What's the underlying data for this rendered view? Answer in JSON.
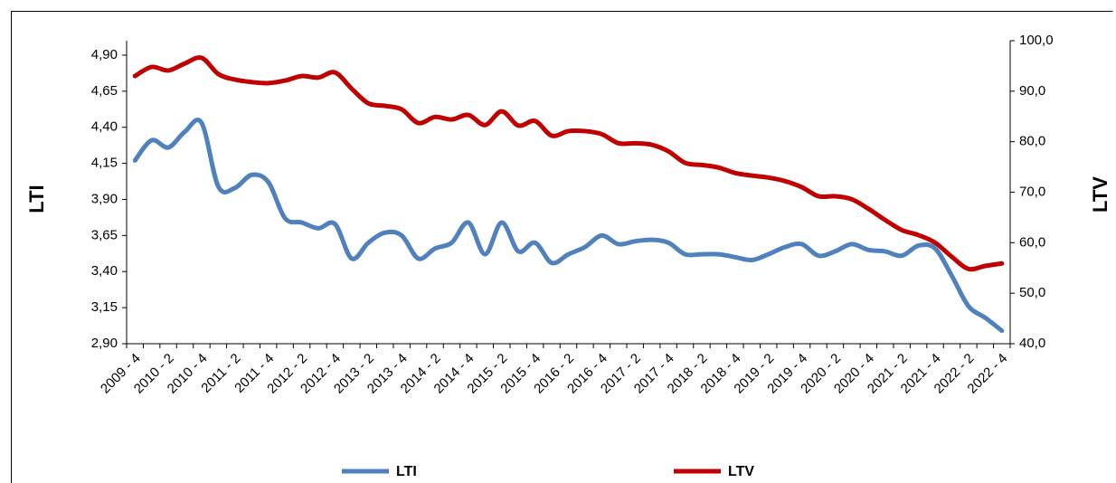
{
  "chart_data": {
    "type": "line",
    "categories": [
      "2009 - 4",
      null,
      "2010 - 2",
      null,
      "2010 - 4",
      null,
      "2011 - 2",
      null,
      "2011 - 4",
      null,
      "2012 - 2",
      null,
      "2012 - 4",
      null,
      "2013 - 2",
      null,
      "2013 - 4",
      null,
      "2014 - 2",
      null,
      "2014 - 4",
      null,
      "2015 - 2",
      null,
      "2015 - 4",
      null,
      "2016 - 2",
      null,
      "2016 - 4",
      null,
      "2017 - 2",
      null,
      "2017 - 4",
      null,
      "2018 - 2",
      null,
      "2018 - 4",
      null,
      "2019 - 2",
      null,
      "2019 - 4",
      null,
      "2020 - 2",
      null,
      "2020 - 4",
      null,
      "2021 - 2",
      null,
      "2021 - 4",
      null,
      "2022 - 2",
      null,
      "2022 - 4"
    ],
    "series": [
      {
        "name": "LTI",
        "color": "#4f81bd",
        "axis": "y",
        "values": [
          4.17,
          4.31,
          4.26,
          4.37,
          4.43,
          3.99,
          3.98,
          4.07,
          4.02,
          3.77,
          3.74,
          3.7,
          3.73,
          3.49,
          3.6,
          3.67,
          3.65,
          3.49,
          3.56,
          3.6,
          3.74,
          3.52,
          3.74,
          3.54,
          3.6,
          3.46,
          3.52,
          3.57,
          3.65,
          3.59,
          3.61,
          3.62,
          3.6,
          3.52,
          3.52,
          3.52,
          3.5,
          3.48,
          3.52,
          3.57,
          3.59,
          3.51,
          3.54,
          3.59,
          3.55,
          3.54,
          3.51,
          3.58,
          3.56,
          3.37,
          3.16,
          3.08,
          2.99
        ]
      },
      {
        "name": "LTV",
        "color": "#c00000",
        "axis": "y2",
        "values": [
          93.0,
          94.8,
          94.1,
          95.5,
          96.6,
          93.4,
          92.3,
          91.8,
          91.6,
          92.1,
          93.0,
          92.7,
          93.7,
          90.5,
          87.6,
          87.1,
          86.4,
          83.7,
          84.9,
          84.4,
          85.3,
          83.3,
          86.0,
          83.2,
          84.1,
          81.2,
          82.1,
          82.1,
          81.5,
          79.7,
          79.7,
          79.4,
          78.1,
          75.8,
          75.4,
          74.9,
          73.8,
          73.3,
          72.9,
          72.2,
          71.0,
          69.2,
          69.2,
          68.6,
          66.7,
          64.5,
          62.5,
          61.5,
          60.0,
          57.2,
          54.8,
          55.4,
          55.9
        ]
      }
    ],
    "y_label": "LTI",
    "y2_label": "LTV",
    "ylim": [
      2.9,
      5.0
    ],
    "yticks": [
      {
        "value": 2.9,
        "label": "2,90"
      },
      {
        "value": 3.15,
        "label": "3,15"
      },
      {
        "value": 3.4,
        "label": "3,40"
      },
      {
        "value": 3.65,
        "label": "3,65"
      },
      {
        "value": 3.9,
        "label": "3,90"
      },
      {
        "value": 4.15,
        "label": "4,15"
      },
      {
        "value": 4.4,
        "label": "4,40"
      },
      {
        "value": 4.65,
        "label": "4,65"
      },
      {
        "value": 4.9,
        "label": "4,90"
      }
    ],
    "y2lim": [
      40,
      100
    ],
    "y2ticks": [
      {
        "value": 40,
        "label": "40,0"
      },
      {
        "value": 50,
        "label": "50,0"
      },
      {
        "value": 60,
        "label": "60,0"
      },
      {
        "value": 70,
        "label": "70,0"
      },
      {
        "value": 80,
        "label": "80,0"
      },
      {
        "value": 90,
        "label": "90,0"
      },
      {
        "value": 100,
        "label": "100,0"
      }
    ],
    "grid": false,
    "legend": "bottom"
  }
}
